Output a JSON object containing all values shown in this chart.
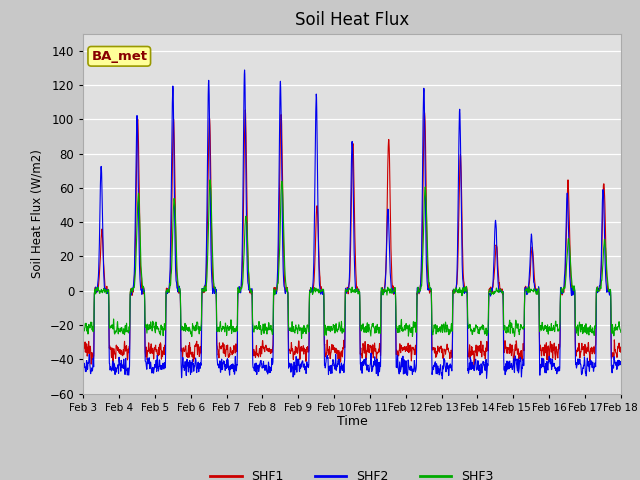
{
  "title": "Soil Heat Flux",
  "ylabel": "Soil Heat Flux (W/m2)",
  "xlabel": "Time",
  "ylim": [
    -60,
    150
  ],
  "yticks": [
    -60,
    -40,
    -20,
    0,
    20,
    40,
    60,
    80,
    100,
    120,
    140
  ],
  "xtick_labels": [
    "Feb 3",
    "Feb 4",
    "Feb 5",
    "Feb 6",
    "Feb 7",
    "Feb 8",
    "Feb 9",
    "Feb 10",
    "Feb 11",
    "Feb 12",
    "Feb 13",
    "Feb 14",
    "Feb 15",
    "Feb 16",
    "Feb 17",
    "Feb 18"
  ],
  "shf1_color": "#cc0000",
  "shf2_color": "#0000ee",
  "shf3_color": "#00aa00",
  "fig_facecolor": "#c8c8c8",
  "ax_facecolor": "#e0e0e0",
  "annotation_text": "BA_met",
  "annotation_bg": "#ffff99",
  "annotation_fg": "#880000",
  "annotation_edge": "#999900",
  "legend_labels": [
    "SHF1",
    "SHF2",
    "SHF3"
  ],
  "linewidth": 0.8,
  "n_days": 15,
  "pts_per_day": 144
}
